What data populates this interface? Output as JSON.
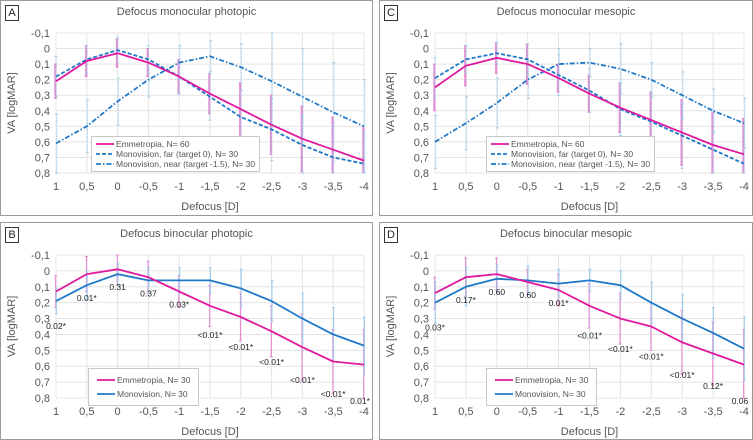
{
  "figure": {
    "panels": [
      "A",
      "C",
      "B",
      "D"
    ]
  },
  "colors": {
    "emmetropia": "#e0199e",
    "monovision": "#1f78c8",
    "emm_err": "#e58ad0",
    "mono_err": "#9fcbea",
    "grid": "#e4e4e4",
    "axis_text": "#555555"
  },
  "chart_data": [
    {
      "id": "A",
      "type": "line",
      "label": "A",
      "title": "Defocus monocular photopic",
      "xlabel": "Defocus [D]",
      "ylabel": "VA [logMAR]",
      "ylim": [
        -0.1,
        0.8
      ],
      "y_inverted": true,
      "grid": true,
      "legend": "bottom-left",
      "categories": [
        "1",
        "0,5",
        "0",
        "-0,5",
        "-1",
        "-1,5",
        "-2",
        "-2,5",
        "-3",
        "-3,5",
        "-4"
      ],
      "yticks": [
        "-0,1",
        "0",
        "0,1",
        "0,2",
        "0,3",
        "0,4",
        "0,5",
        "0,6",
        "0,7",
        "0,8"
      ],
      "series": [
        {
          "name": "Emmetropia, N= 60",
          "style": "solid",
          "color_key": "emmetropia",
          "values": [
            0.21,
            0.08,
            0.03,
            0.09,
            0.18,
            0.29,
            0.39,
            0.49,
            0.58,
            0.65,
            0.72
          ],
          "err": [
            0.11,
            0.1,
            0.09,
            0.09,
            0.11,
            0.13,
            0.17,
            0.19,
            0.21,
            0.21,
            0.21
          ]
        },
        {
          "name": "Monovision, far (target 0), N= 30",
          "style": "dashed",
          "color_key": "monovision",
          "values": [
            0.18,
            0.07,
            0.01,
            0.07,
            0.18,
            0.31,
            0.44,
            0.52,
            0.62,
            0.7,
            0.74
          ],
          "err": [
            0.13,
            0.09,
            0.08,
            0.09,
            0.11,
            0.15,
            0.17,
            0.2,
            0.19,
            0.21,
            0.2
          ]
        },
        {
          "name": "Monovision, near (target -1.5), N= 30",
          "style": "dashdot",
          "color_key": "monovision",
          "values": [
            0.61,
            0.5,
            0.34,
            0.2,
            0.09,
            0.05,
            0.12,
            0.21,
            0.31,
            0.41,
            0.5
          ],
          "err": [
            0.19,
            0.17,
            0.15,
            0.11,
            0.11,
            0.1,
            0.15,
            0.31,
            0.31,
            0.32,
            0.3
          ]
        }
      ],
      "annotations": []
    },
    {
      "id": "C",
      "type": "line",
      "label": "C",
      "title": "Defocus monocular mesopic",
      "xlabel": "Defocus [D]",
      "ylabel": "VA [logMAR]",
      "ylim": [
        -0.1,
        0.8
      ],
      "y_inverted": true,
      "grid": true,
      "legend": "bottom-left",
      "categories": [
        "1",
        "0,5",
        "0",
        "-0,5",
        "-1",
        "-1,5",
        "-2",
        "-2,5",
        "-3",
        "-3,5",
        "-4"
      ],
      "yticks": [
        "-0,1",
        "0",
        "0,1",
        "0,2",
        "0,3",
        "0,4",
        "0,5",
        "0,6",
        "0,7",
        "0,8"
      ],
      "series": [
        {
          "name": "Emmetropia, N= 60",
          "style": "solid",
          "color_key": "emmetropia",
          "values": [
            0.25,
            0.11,
            0.06,
            0.1,
            0.19,
            0.29,
            0.38,
            0.46,
            0.54,
            0.62,
            0.68
          ],
          "err": [
            0.15,
            0.13,
            0.1,
            0.13,
            0.09,
            0.12,
            0.16,
            0.18,
            0.21,
            0.21,
            0.23
          ]
        },
        {
          "name": "Monovision, far (target 0), N= 30",
          "style": "dashed",
          "color_key": "monovision",
          "values": [
            0.19,
            0.07,
            0.03,
            0.07,
            0.17,
            0.27,
            0.39,
            0.47,
            0.56,
            0.65,
            0.74
          ],
          "err": [
            0.13,
            0.09,
            0.07,
            0.1,
            0.13,
            0.14,
            0.17,
            0.18,
            0.21,
            0.25,
            0.26
          ]
        },
        {
          "name": "Monovision, near (target -1.5), N= 30",
          "style": "dashdot",
          "color_key": "monovision",
          "values": [
            0.6,
            0.48,
            0.35,
            0.2,
            0.1,
            0.09,
            0.13,
            0.2,
            0.3,
            0.4,
            0.48
          ],
          "err": [
            0.17,
            0.17,
            0.16,
            0.12,
            0.1,
            0.09,
            0.16,
            0.11,
            0.15,
            0.14,
            0.16
          ]
        }
      ],
      "annotations": []
    },
    {
      "id": "B",
      "type": "line",
      "label": "B",
      "title": "Defocus binocular photopic",
      "xlabel": "Defocus [D]",
      "ylabel": "VA [logMAR]",
      "ylim": [
        -0.1,
        0.8
      ],
      "y_inverted": true,
      "grid": true,
      "legend": "bottom-left",
      "categories": [
        "1",
        "0,5",
        "0",
        "-0,5",
        "-1",
        "-1,5",
        "-2",
        "-2,5",
        "-3",
        "-3,5",
        "-4"
      ],
      "yticks": [
        "-0,1",
        "0",
        "0,1",
        "0,2",
        "0,3",
        "0,4",
        "0,5",
        "0,6",
        "0,7",
        "0,8"
      ],
      "series": [
        {
          "name": "Emmetropia, N= 30",
          "style": "solid",
          "color_key": "emmetropia",
          "values": [
            0.13,
            0.02,
            -0.01,
            0.04,
            0.13,
            0.22,
            0.29,
            0.38,
            0.48,
            0.57,
            0.59
          ],
          "err": [
            0.1,
            0.11,
            0.1,
            0.1,
            0.1,
            0.13,
            0.15,
            0.16,
            0.21,
            0.2,
            0.22
          ]
        },
        {
          "name": "Monovision, N= 30",
          "style": "solid",
          "color_key": "monovision",
          "values": [
            0.19,
            0.09,
            0.02,
            0.06,
            0.06,
            0.06,
            0.11,
            0.19,
            0.3,
            0.4,
            0.47
          ],
          "err": [
            0.08,
            0.09,
            0.07,
            0.08,
            0.08,
            0.08,
            0.12,
            0.13,
            0.16,
            0.17,
            0.18
          ]
        }
      ],
      "annotations": [
        "0.02*",
        "0.01*",
        "0.31",
        "0.37",
        "0.03*",
        "<0.01*",
        "<0.01*",
        "<0.01*",
        "<0.01*",
        "<0.01*",
        "0.01*"
      ]
    },
    {
      "id": "D",
      "type": "line",
      "label": "D",
      "title": "Defocus binocular mesopic",
      "xlabel": "Defocus [D]",
      "ylabel": "VA [logMAR]",
      "ylim": [
        -0.1,
        0.8
      ],
      "y_inverted": true,
      "grid": true,
      "legend": "bottom-left",
      "categories": [
        "1",
        "0,5",
        "0",
        "-0,5",
        "-1",
        "-1,5",
        "-2",
        "-2,5",
        "-3",
        "-3,5",
        "-4"
      ],
      "yticks": [
        "-0,1",
        "0",
        "0,1",
        "0,2",
        "0,3",
        "0,4",
        "0,5",
        "0,6",
        "0,7",
        "0,8"
      ],
      "series": [
        {
          "name": "Emmetropia, N= 30",
          "style": "solid",
          "color_key": "emmetropia",
          "values": [
            0.14,
            0.04,
            0.02,
            0.07,
            0.12,
            0.22,
            0.3,
            0.35,
            0.45,
            0.52,
            0.59
          ],
          "err": [
            0.1,
            0.12,
            0.1,
            0.08,
            0.1,
            0.14,
            0.16,
            0.15,
            0.2,
            0.2,
            0.22
          ]
        },
        {
          "name": "Monovision, N= 30",
          "style": "solid",
          "color_key": "monovision",
          "values": [
            0.2,
            0.1,
            0.05,
            0.06,
            0.08,
            0.06,
            0.09,
            0.2,
            0.3,
            0.39,
            0.49
          ],
          "err": [
            0.13,
            0.12,
            0.09,
            0.09,
            0.09,
            0.07,
            0.09,
            0.13,
            0.15,
            0.16,
            0.2
          ]
        }
      ],
      "annotations": [
        "0.03*",
        "0.17*",
        "0.60",
        "0.60",
        "0.01*",
        "<0.01*",
        "<0.01*",
        "<0.01*",
        "<0.01*",
        "0.12*",
        "0.06"
      ]
    }
  ]
}
